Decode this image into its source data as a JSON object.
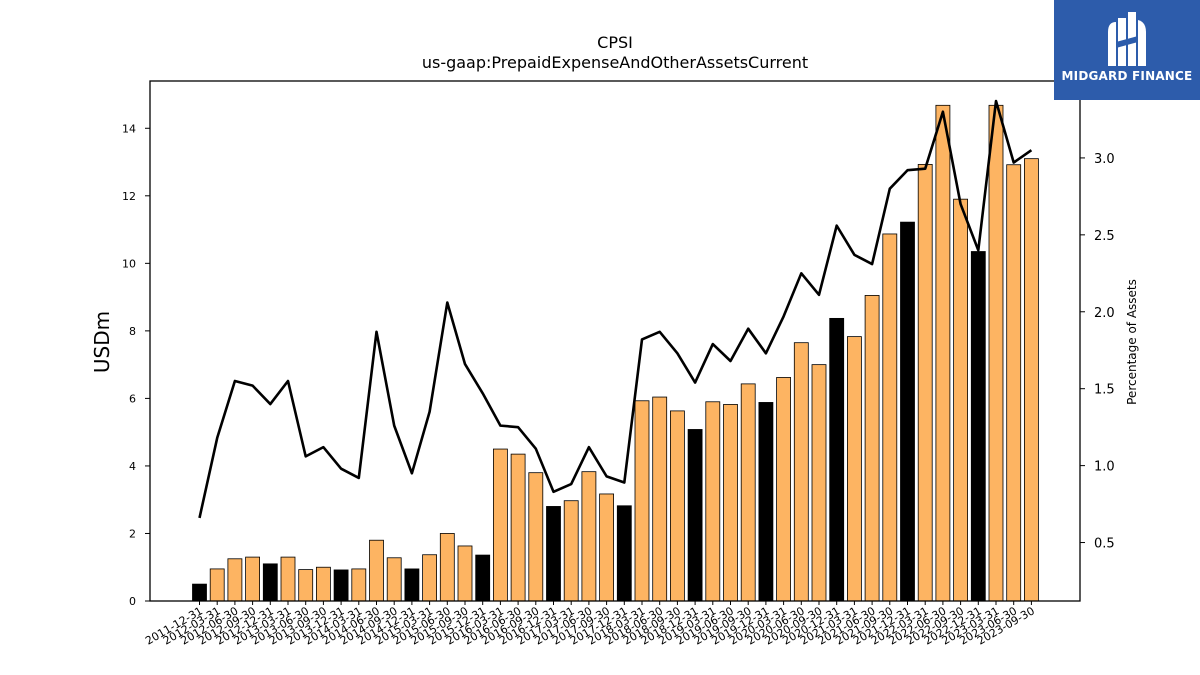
{
  "chart_data": {
    "type": "bar+line",
    "title": "CPSI",
    "subtitle": "us-gaap:PrepaidExpenseAndOtherAssetsCurrent",
    "ylabel": "USDm",
    "y2label": "Percentage of Assets",
    "ylim": [
      0,
      15.4
    ],
    "y2lim": [
      0.12,
      3.5
    ],
    "yticks": [
      0,
      2,
      4,
      6,
      8,
      10,
      12,
      14
    ],
    "y2ticks": [
      "0.5",
      "1.0",
      "1.5",
      "2.0",
      "2.5",
      "3.0"
    ],
    "categories": [
      "2011-12-31",
      "2012-03-31",
      "2012-06-30",
      "2012-09-30",
      "2012-12-31",
      "2013-03-31",
      "2013-06-30",
      "2013-09-30",
      "2013-12-31",
      "2014-03-31",
      "2014-06-30",
      "2014-09-30",
      "2014-12-31",
      "2015-03-31",
      "2015-06-30",
      "2015-09-30",
      "2015-12-31",
      "2016-03-31",
      "2016-06-30",
      "2016-09-30",
      "2016-12-31",
      "2017-03-31",
      "2017-06-30",
      "2017-09-30",
      "2017-12-31",
      "2018-03-31",
      "2018-06-30",
      "2018-09-30",
      "2018-12-31",
      "2019-03-31",
      "2019-06-30",
      "2019-09-30",
      "2019-12-31",
      "2020-03-31",
      "2020-06-30",
      "2020-09-30",
      "2020-12-31",
      "2021-03-31",
      "2021-06-30",
      "2021-09-30",
      "2021-12-31",
      "2022-03-31",
      "2022-06-30",
      "2022-09-30",
      "2022-12-31",
      "2023-03-31",
      "2023-06-30",
      "2023-09-30"
    ],
    "series": [
      {
        "values": [
          0.5,
          0.95,
          1.25,
          1.3,
          1.1,
          1.3,
          0.93,
          1.0,
          0.92,
          0.95,
          1.8,
          1.28,
          0.95,
          1.37,
          2.0,
          1.63,
          1.36,
          4.5,
          4.35,
          3.8,
          2.8,
          2.97,
          3.83,
          3.17,
          2.82,
          5.93,
          6.04,
          5.63,
          5.08,
          5.9,
          5.82,
          6.43,
          5.88,
          6.62,
          7.65,
          7.0,
          8.37,
          7.83,
          9.05,
          10.87,
          11.22,
          12.93,
          14.68,
          11.9,
          10.35,
          14.68,
          12.92,
          13.1
        ],
        "fiscal_year_end": [
          true,
          false,
          false,
          false,
          true,
          false,
          false,
          false,
          true,
          false,
          false,
          false,
          true,
          false,
          false,
          false,
          true,
          false,
          false,
          false,
          true,
          false,
          false,
          false,
          true,
          false,
          false,
          false,
          true,
          false,
          false,
          false,
          true,
          false,
          false,
          false,
          true,
          false,
          false,
          false,
          true,
          false,
          false,
          false,
          true,
          false,
          false,
          false
        ]
      },
      {
        "values": [
          0.66,
          1.18,
          1.55,
          1.52,
          1.4,
          1.55,
          1.06,
          1.12,
          0.98,
          0.92,
          1.87,
          1.26,
          0.95,
          1.35,
          2.06,
          1.66,
          1.47,
          1.26,
          1.25,
          1.11,
          0.83,
          0.88,
          1.12,
          0.93,
          0.89,
          1.82,
          1.87,
          1.73,
          1.54,
          1.79,
          1.68,
          1.89,
          1.73,
          1.97,
          2.25,
          2.11,
          2.56,
          2.37,
          2.31,
          2.8,
          2.92,
          2.93,
          3.3,
          2.7,
          2.4,
          3.37,
          2.97,
          3.05
        ]
      }
    ],
    "colors": {
      "bar": "#fdb462",
      "bar_year_end": "#000000",
      "line": "#000000"
    },
    "grid": false
  },
  "logo": {
    "text": "MIDGARD FINANCE",
    "background": "#2d5cab"
  }
}
